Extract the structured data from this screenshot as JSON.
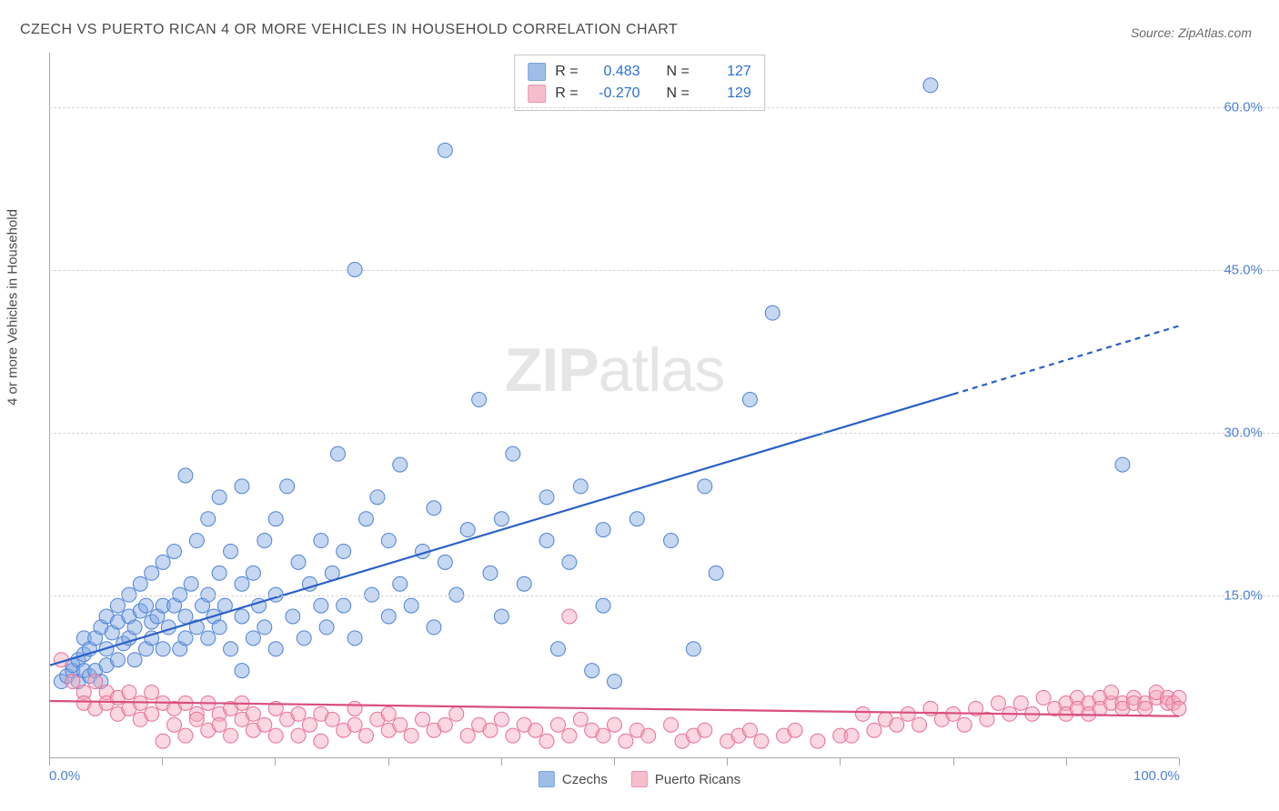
{
  "title": "CZECH VS PUERTO RICAN 4 OR MORE VEHICLES IN HOUSEHOLD CORRELATION CHART",
  "source_prefix": "Source: ",
  "source_name": "ZipAtlas.com",
  "y_axis_label": "4 or more Vehicles in Household",
  "watermark_a": "ZIP",
  "watermark_b": "atlas",
  "chart": {
    "type": "scatter",
    "xlim": [
      0,
      100
    ],
    "ylim": [
      0,
      65
    ],
    "x_ticks": [
      0,
      10,
      20,
      30,
      40,
      50,
      60,
      70,
      80,
      90,
      100
    ],
    "x_tick_labels": {
      "0": "0.0%",
      "100": "100.0%"
    },
    "y_ticks": [
      15,
      30,
      45,
      60
    ],
    "y_tick_labels": {
      "15": "15.0%",
      "30": "30.0%",
      "45": "45.0%",
      "60": "60.0%"
    },
    "grid_color": "#d5d5d5",
    "axis_color": "#a8a8a8",
    "background_color": "#ffffff",
    "marker_radius": 8,
    "marker_opacity": 0.45,
    "line_width": 2.2,
    "series": [
      {
        "name": "Czechs",
        "fill": "#7ea7e0",
        "stroke": "#4f81d6",
        "line_color": "#2a5fc7",
        "R": "0.483",
        "N": "127",
        "trend": {
          "x1": 0,
          "y1": 8.5,
          "x2": 80,
          "y2": 33.5,
          "x2_dash": 100,
          "y2_dash": 39.8
        },
        "points": [
          [
            1,
            7
          ],
          [
            1.5,
            7.5
          ],
          [
            2,
            8
          ],
          [
            2,
            8.5
          ],
          [
            2.5,
            7
          ],
          [
            2.5,
            9
          ],
          [
            3,
            8
          ],
          [
            3,
            9.5
          ],
          [
            3,
            11
          ],
          [
            3.5,
            7.5
          ],
          [
            3.5,
            10
          ],
          [
            4,
            8
          ],
          [
            4,
            11
          ],
          [
            4.5,
            7
          ],
          [
            4.5,
            12
          ],
          [
            5,
            8.5
          ],
          [
            5,
            10
          ],
          [
            5,
            13
          ],
          [
            5.5,
            11.5
          ],
          [
            6,
            9
          ],
          [
            6,
            12.5
          ],
          [
            6,
            14
          ],
          [
            6.5,
            10.5
          ],
          [
            7,
            11
          ],
          [
            7,
            13
          ],
          [
            7,
            15
          ],
          [
            7.5,
            9
          ],
          [
            7.5,
            12
          ],
          [
            8,
            13.5
          ],
          [
            8,
            16
          ],
          [
            8.5,
            10
          ],
          [
            8.5,
            14
          ],
          [
            9,
            11
          ],
          [
            9,
            12.5
          ],
          [
            9,
            17
          ],
          [
            9.5,
            13
          ],
          [
            10,
            10
          ],
          [
            10,
            14
          ],
          [
            10,
            18
          ],
          [
            10.5,
            12
          ],
          [
            11,
            14
          ],
          [
            11,
            19
          ],
          [
            11.5,
            10
          ],
          [
            11.5,
            15
          ],
          [
            12,
            11
          ],
          [
            12,
            13
          ],
          [
            12,
            26
          ],
          [
            12.5,
            16
          ],
          [
            13,
            12
          ],
          [
            13,
            20
          ],
          [
            13.5,
            14
          ],
          [
            14,
            11
          ],
          [
            14,
            15
          ],
          [
            14,
            22
          ],
          [
            14.5,
            13
          ],
          [
            15,
            12
          ],
          [
            15,
            17
          ],
          [
            15,
            24
          ],
          [
            15.5,
            14
          ],
          [
            16,
            10
          ],
          [
            16,
            19
          ],
          [
            17,
            8
          ],
          [
            17,
            13
          ],
          [
            17,
            16
          ],
          [
            17,
            25
          ],
          [
            18,
            11
          ],
          [
            18,
            17
          ],
          [
            18.5,
            14
          ],
          [
            19,
            12
          ],
          [
            19,
            20
          ],
          [
            20,
            10
          ],
          [
            20,
            15
          ],
          [
            20,
            22
          ],
          [
            21,
            25
          ],
          [
            21.5,
            13
          ],
          [
            22,
            18
          ],
          [
            22.5,
            11
          ],
          [
            23,
            16
          ],
          [
            24,
            14
          ],
          [
            24,
            20
          ],
          [
            24.5,
            12
          ],
          [
            25,
            17
          ],
          [
            25.5,
            28
          ],
          [
            26,
            14
          ],
          [
            26,
            19
          ],
          [
            27,
            45
          ],
          [
            27,
            11
          ],
          [
            28,
            22
          ],
          [
            28.5,
            15
          ],
          [
            29,
            24
          ],
          [
            30,
            13
          ],
          [
            30,
            20
          ],
          [
            31,
            16
          ],
          [
            31,
            27
          ],
          [
            32,
            14
          ],
          [
            33,
            19
          ],
          [
            34,
            12
          ],
          [
            34,
            23
          ],
          [
            35,
            18
          ],
          [
            35,
            56
          ],
          [
            36,
            15
          ],
          [
            37,
            21
          ],
          [
            38,
            33
          ],
          [
            39,
            17
          ],
          [
            40,
            13
          ],
          [
            40,
            22
          ],
          [
            41,
            28
          ],
          [
            42,
            16
          ],
          [
            44,
            20
          ],
          [
            44,
            24
          ],
          [
            45,
            10
          ],
          [
            46,
            18
          ],
          [
            47,
            25
          ],
          [
            48,
            8
          ],
          [
            49,
            14
          ],
          [
            49,
            21
          ],
          [
            50,
            7
          ],
          [
            52,
            22
          ],
          [
            55,
            20
          ],
          [
            57,
            10
          ],
          [
            58,
            25
          ],
          [
            59,
            17
          ],
          [
            62,
            33
          ],
          [
            64,
            41
          ],
          [
            78,
            62
          ],
          [
            95,
            27
          ]
        ]
      },
      {
        "name": "Puerto Ricans",
        "fill": "#f4a7bd",
        "stroke": "#e66f95",
        "line_color": "#d94f7c",
        "R": "-0.270",
        "N": "129",
        "trend": {
          "x1": 0,
          "y1": 5.2,
          "x2": 100,
          "y2": 3.8
        },
        "points": [
          [
            1,
            9
          ],
          [
            2,
            7
          ],
          [
            3,
            6
          ],
          [
            3,
            5
          ],
          [
            4,
            7
          ],
          [
            4,
            4.5
          ],
          [
            5,
            6
          ],
          [
            5,
            5
          ],
          [
            6,
            5.5
          ],
          [
            6,
            4
          ],
          [
            7,
            6
          ],
          [
            7,
            4.5
          ],
          [
            8,
            5
          ],
          [
            8,
            3.5
          ],
          [
            9,
            6
          ],
          [
            9,
            4
          ],
          [
            10,
            5
          ],
          [
            10,
            1.5
          ],
          [
            11,
            4.5
          ],
          [
            11,
            3
          ],
          [
            12,
            5
          ],
          [
            12,
            2
          ],
          [
            13,
            4
          ],
          [
            13,
            3.5
          ],
          [
            14,
            5
          ],
          [
            14,
            2.5
          ],
          [
            15,
            4
          ],
          [
            15,
            3
          ],
          [
            16,
            4.5
          ],
          [
            16,
            2
          ],
          [
            17,
            3.5
          ],
          [
            17,
            5
          ],
          [
            18,
            4
          ],
          [
            18,
            2.5
          ],
          [
            19,
            3
          ],
          [
            20,
            4.5
          ],
          [
            20,
            2
          ],
          [
            21,
            3.5
          ],
          [
            22,
            4
          ],
          [
            22,
            2
          ],
          [
            23,
            3
          ],
          [
            24,
            4
          ],
          [
            24,
            1.5
          ],
          [
            25,
            3.5
          ],
          [
            26,
            2.5
          ],
          [
            27,
            3
          ],
          [
            27,
            4.5
          ],
          [
            28,
            2
          ],
          [
            29,
            3.5
          ],
          [
            30,
            2.5
          ],
          [
            30,
            4
          ],
          [
            31,
            3
          ],
          [
            32,
            2
          ],
          [
            33,
            3.5
          ],
          [
            34,
            2.5
          ],
          [
            35,
            3
          ],
          [
            36,
            4
          ],
          [
            37,
            2
          ],
          [
            38,
            3
          ],
          [
            39,
            2.5
          ],
          [
            40,
            3.5
          ],
          [
            41,
            2
          ],
          [
            42,
            3
          ],
          [
            43,
            2.5
          ],
          [
            44,
            1.5
          ],
          [
            45,
            3
          ],
          [
            46,
            2
          ],
          [
            46,
            13
          ],
          [
            47,
            3.5
          ],
          [
            48,
            2.5
          ],
          [
            49,
            2
          ],
          [
            50,
            3
          ],
          [
            51,
            1.5
          ],
          [
            52,
            2.5
          ],
          [
            53,
            2
          ],
          [
            55,
            3
          ],
          [
            56,
            1.5
          ],
          [
            57,
            2
          ],
          [
            58,
            2.5
          ],
          [
            60,
            1.5
          ],
          [
            61,
            2
          ],
          [
            62,
            2.5
          ],
          [
            63,
            1.5
          ],
          [
            65,
            2
          ],
          [
            66,
            2.5
          ],
          [
            68,
            1.5
          ],
          [
            70,
            2
          ],
          [
            71,
            2
          ],
          [
            72,
            4
          ],
          [
            73,
            2.5
          ],
          [
            74,
            3.5
          ],
          [
            75,
            3
          ],
          [
            76,
            4
          ],
          [
            77,
            3
          ],
          [
            78,
            4.5
          ],
          [
            79,
            3.5
          ],
          [
            80,
            4
          ],
          [
            81,
            3
          ],
          [
            82,
            4.5
          ],
          [
            83,
            3.5
          ],
          [
            84,
            5
          ],
          [
            85,
            4
          ],
          [
            86,
            5
          ],
          [
            87,
            4
          ],
          [
            88,
            5.5
          ],
          [
            89,
            4.5
          ],
          [
            90,
            5
          ],
          [
            90,
            4
          ],
          [
            91,
            5.5
          ],
          [
            91,
            4.5
          ],
          [
            92,
            5
          ],
          [
            92,
            4
          ],
          [
            93,
            5.5
          ],
          [
            93,
            4.5
          ],
          [
            94,
            5
          ],
          [
            94,
            6
          ],
          [
            95,
            5
          ],
          [
            95,
            4.5
          ],
          [
            96,
            5.5
          ],
          [
            96,
            5
          ],
          [
            97,
            5
          ],
          [
            97,
            4.5
          ],
          [
            98,
            5.5
          ],
          [
            98,
            6
          ],
          [
            99,
            5
          ],
          [
            99,
            5.5
          ],
          [
            99.5,
            5
          ],
          [
            100,
            5.5
          ],
          [
            100,
            4.5
          ]
        ]
      }
    ]
  },
  "legend": {
    "series1_label": "Czechs",
    "series2_label": "Puerto Ricans"
  },
  "stats_labels": {
    "R": "R =",
    "N": "N ="
  }
}
